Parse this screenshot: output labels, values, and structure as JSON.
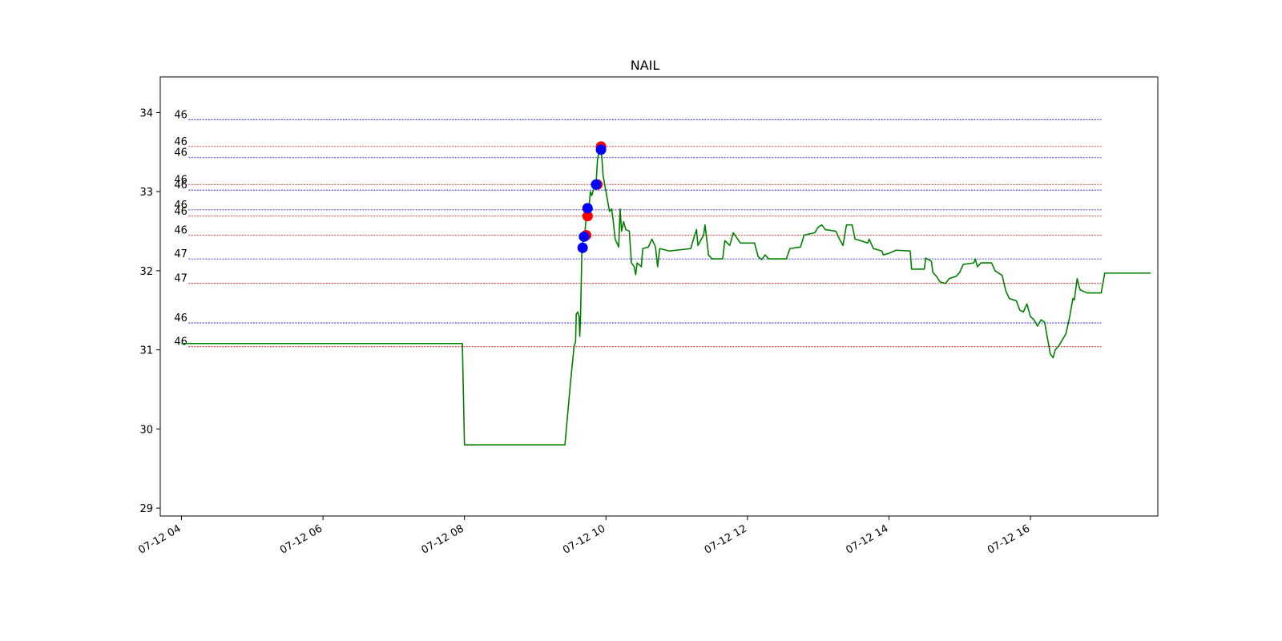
{
  "chart_data": {
    "type": "line",
    "title": "NAIL",
    "xlabel": "",
    "ylabel": "",
    "x_unit": "hours",
    "xlim": [
      3.7,
      17.8
    ],
    "ylim": [
      28.9,
      34.45
    ],
    "grid": false,
    "x_ticks": [
      {
        "value": 4,
        "label": "07-12 04"
      },
      {
        "value": 6,
        "label": "07-12 06"
      },
      {
        "value": 8,
        "label": "07-12 08"
      },
      {
        "value": 10,
        "label": "07-12 10"
      },
      {
        "value": 12,
        "label": "07-12 12"
      },
      {
        "value": 14,
        "label": "07-12 14"
      },
      {
        "value": 16,
        "label": "07-12 16"
      }
    ],
    "y_ticks": [
      {
        "value": 29,
        "label": "29"
      },
      {
        "value": 30,
        "label": "30"
      },
      {
        "value": 31,
        "label": "31"
      },
      {
        "value": 32,
        "label": "32"
      },
      {
        "value": 33,
        "label": "33"
      },
      {
        "value": 34,
        "label": "34"
      }
    ],
    "series": [
      {
        "color": "#008000",
        "points": [
          [
            4.0,
            31.08
          ],
          [
            7.97,
            31.08
          ],
          [
            8.0,
            29.8
          ],
          [
            9.42,
            29.8
          ],
          [
            9.5,
            30.6
          ],
          [
            9.55,
            31.05
          ],
          [
            9.57,
            31.1
          ],
          [
            9.58,
            31.45
          ],
          [
            9.6,
            31.48
          ],
          [
            9.62,
            31.42
          ],
          [
            9.63,
            31.17
          ],
          [
            9.64,
            31.4
          ],
          [
            9.66,
            32.28
          ],
          [
            9.68,
            32.42
          ],
          [
            9.7,
            32.45
          ],
          [
            9.72,
            32.68
          ],
          [
            9.74,
            32.78
          ],
          [
            9.76,
            32.8
          ],
          [
            9.78,
            33.0
          ],
          [
            9.8,
            32.95
          ],
          [
            9.84,
            33.08
          ],
          [
            9.86,
            33.1
          ],
          [
            9.88,
            33.4
          ],
          [
            9.9,
            33.5
          ],
          [
            9.92,
            33.55
          ],
          [
            9.94,
            33.45
          ],
          [
            9.96,
            33.2
          ],
          [
            10.0,
            33.0
          ],
          [
            10.05,
            32.75
          ],
          [
            10.08,
            32.78
          ],
          [
            10.1,
            32.65
          ],
          [
            10.13,
            32.4
          ],
          [
            10.18,
            32.3
          ],
          [
            10.2,
            32.78
          ],
          [
            10.22,
            32.5
          ],
          [
            10.25,
            32.62
          ],
          [
            10.28,
            32.52
          ],
          [
            10.33,
            32.5
          ],
          [
            10.36,
            32.1
          ],
          [
            10.4,
            32.05
          ],
          [
            10.42,
            31.95
          ],
          [
            10.44,
            32.1
          ],
          [
            10.5,
            32.05
          ],
          [
            10.52,
            32.28
          ],
          [
            10.6,
            32.3
          ],
          [
            10.65,
            32.4
          ],
          [
            10.7,
            32.3
          ],
          [
            10.73,
            32.05
          ],
          [
            10.76,
            32.28
          ],
          [
            10.9,
            32.25
          ],
          [
            11.2,
            32.28
          ],
          [
            11.22,
            32.35
          ],
          [
            11.28,
            32.52
          ],
          [
            11.3,
            32.32
          ],
          [
            11.38,
            32.45
          ],
          [
            11.4,
            32.58
          ],
          [
            11.45,
            32.2
          ],
          [
            11.5,
            32.15
          ],
          [
            11.65,
            32.15
          ],
          [
            11.68,
            32.38
          ],
          [
            11.75,
            32.32
          ],
          [
            11.8,
            32.48
          ],
          [
            11.9,
            32.35
          ],
          [
            12.1,
            32.35
          ],
          [
            12.15,
            32.18
          ],
          [
            12.2,
            32.14
          ],
          [
            12.25,
            32.2
          ],
          [
            12.3,
            32.15
          ],
          [
            12.55,
            32.15
          ],
          [
            12.6,
            32.28
          ],
          [
            12.75,
            32.3
          ],
          [
            12.8,
            32.45
          ],
          [
            12.95,
            32.48
          ],
          [
            13.0,
            32.55
          ],
          [
            13.05,
            32.58
          ],
          [
            13.1,
            32.52
          ],
          [
            13.25,
            32.5
          ],
          [
            13.3,
            32.4
          ],
          [
            13.35,
            32.32
          ],
          [
            13.4,
            32.58
          ],
          [
            13.48,
            32.58
          ],
          [
            13.52,
            32.4
          ],
          [
            13.6,
            32.38
          ],
          [
            13.7,
            32.35
          ],
          [
            13.72,
            32.4
          ],
          [
            13.78,
            32.28
          ],
          [
            13.9,
            32.25
          ],
          [
            13.92,
            32.2
          ],
          [
            14.0,
            32.22
          ],
          [
            14.1,
            32.26
          ],
          [
            14.3,
            32.25
          ],
          [
            14.32,
            32.02
          ],
          [
            14.5,
            32.02
          ],
          [
            14.52,
            32.16
          ],
          [
            14.6,
            32.12
          ],
          [
            14.62,
            31.98
          ],
          [
            14.68,
            31.92
          ],
          [
            14.72,
            31.86
          ],
          [
            14.8,
            31.84
          ],
          [
            14.85,
            31.9
          ],
          [
            14.95,
            31.93
          ],
          [
            15.0,
            31.98
          ],
          [
            15.05,
            32.08
          ],
          [
            15.2,
            32.1
          ],
          [
            15.22,
            32.15
          ],
          [
            15.25,
            32.05
          ],
          [
            15.3,
            32.1
          ],
          [
            15.45,
            32.1
          ],
          [
            15.5,
            32.0
          ],
          [
            15.6,
            31.94
          ],
          [
            15.65,
            31.75
          ],
          [
            15.7,
            31.65
          ],
          [
            15.8,
            31.62
          ],
          [
            15.85,
            31.5
          ],
          [
            15.9,
            31.48
          ],
          [
            15.95,
            31.58
          ],
          [
            16.0,
            31.42
          ],
          [
            16.05,
            31.38
          ],
          [
            16.1,
            31.3
          ],
          [
            16.15,
            31.38
          ],
          [
            16.2,
            31.35
          ],
          [
            16.25,
            31.1
          ],
          [
            16.28,
            30.95
          ],
          [
            16.32,
            30.9
          ],
          [
            16.35,
            31.0
          ],
          [
            16.4,
            31.05
          ],
          [
            16.5,
            31.2
          ],
          [
            16.55,
            31.4
          ],
          [
            16.6,
            31.65
          ],
          [
            16.62,
            31.63
          ],
          [
            16.66,
            31.9
          ],
          [
            16.7,
            31.76
          ],
          [
            16.8,
            31.72
          ],
          [
            17.0,
            31.72
          ],
          [
            17.05,
            31.97
          ],
          [
            17.7,
            31.97
          ]
        ]
      }
    ],
    "levels": [
      {
        "value": 33.91,
        "label": "46",
        "color": "#0000cc"
      },
      {
        "value": 33.57,
        "label": "46",
        "color": "#cc0000"
      },
      {
        "value": 33.43,
        "label": "46",
        "color": "#0000cc"
      },
      {
        "value": 33.09,
        "label": "46",
        "color": "#cc0000"
      },
      {
        "value": 33.02,
        "label": "46",
        "color": "#0000cc"
      },
      {
        "value": 32.77,
        "label": "46",
        "color": "#0000cc"
      },
      {
        "value": 32.69,
        "label": "46",
        "color": "#cc0000"
      },
      {
        "value": 32.45,
        "label": "46",
        "color": "#cc0000"
      },
      {
        "value": 32.15,
        "label": "47",
        "color": "#0000cc"
      },
      {
        "value": 31.84,
        "label": "47",
        "color": "#cc0000"
      },
      {
        "value": 31.34,
        "label": "46",
        "color": "#0000cc"
      },
      {
        "value": 31.04,
        "label": "46",
        "color": "#cc0000"
      }
    ],
    "level_x_range": [
      4.1,
      17.0
    ],
    "markers": [
      {
        "x": 9.72,
        "y": 32.45,
        "color": "#ff0000"
      },
      {
        "x": 9.74,
        "y": 32.69,
        "color": "#ff0000"
      },
      {
        "x": 9.88,
        "y": 33.09,
        "color": "#ff0000"
      },
      {
        "x": 9.93,
        "y": 33.57,
        "color": "#ff0000"
      },
      {
        "x": 9.67,
        "y": 32.29,
        "color": "#0000ff"
      },
      {
        "x": 9.69,
        "y": 32.43,
        "color": "#0000ff"
      },
      {
        "x": 9.74,
        "y": 32.79,
        "color": "#0000ff"
      },
      {
        "x": 9.86,
        "y": 33.09,
        "color": "#0000ff"
      },
      {
        "x": 9.93,
        "y": 33.53,
        "color": "#0000ff"
      }
    ]
  }
}
